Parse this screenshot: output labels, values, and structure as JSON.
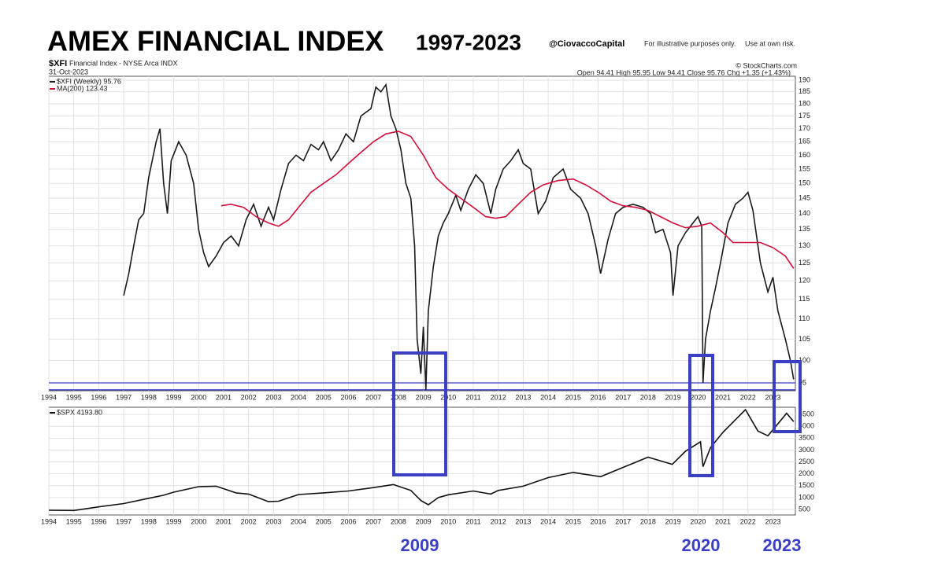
{
  "chart_data": [
    {
      "type": "line",
      "title": "AMEX FINANCIAL INDEX",
      "subtitle": "1997-2023",
      "handle": "@CiovaccoCapital",
      "notes": [
        "For illustrative purposes only.",
        "Use at own risk."
      ],
      "symbol": "$XFI",
      "symbol_desc": "Financial Index - NYSE Arca INDX",
      "source": "© StockCharts.com",
      "date": "31-Oct-2023",
      "quote": "Open 94.41 High 95.95 Low 94.41 Close 95.76 Chg +1.35 (+1.43%)",
      "log_scale": true,
      "grid": true,
      "xlim": [
        1994,
        2023.9
      ],
      "xticks": [
        1994,
        1995,
        1996,
        1997,
        1998,
        1999,
        2000,
        2001,
        2002,
        2003,
        2004,
        2005,
        2006,
        2007,
        2008,
        2009,
        2010,
        2011,
        2012,
        2013,
        2014,
        2015,
        2016,
        2017,
        2018,
        2019,
        2020,
        2021,
        2022,
        2023
      ],
      "ylim": [
        93.3,
        191.7
      ],
      "yticks": [
        95,
        100,
        105,
        110,
        115,
        120,
        125,
        130,
        135,
        140,
        145,
        150,
        155,
        160,
        165,
        170,
        175,
        180,
        185,
        190
      ],
      "hlines": [
        95,
        93.5
      ],
      "hline_color": "#3a3fc4",
      "series": [
        {
          "name": "$XFI (Weekly) 95.76",
          "color": "#1a1a1a",
          "x": [
            1997.0,
            1997.2,
            1997.4,
            1997.6,
            1997.8,
            1998.0,
            1998.3,
            1998.45,
            1998.6,
            1998.75,
            1998.9,
            1999.2,
            1999.5,
            1999.8,
            2000.0,
            2000.2,
            2000.4,
            2000.7,
            2001.0,
            2001.3,
            2001.6,
            2001.9,
            2002.2,
            2002.5,
            2002.8,
            2003.0,
            2003.3,
            2003.6,
            2003.9,
            2004.2,
            2004.5,
            2004.8,
            2005.0,
            2005.3,
            2005.6,
            2005.9,
            2006.2,
            2006.5,
            2006.9,
            2007.1,
            2007.3,
            2007.5,
            2007.7,
            2007.9,
            2008.1,
            2008.3,
            2008.5,
            2008.65,
            2008.75,
            2008.9,
            2009.0,
            2009.1,
            2009.2,
            2009.4,
            2009.6,
            2009.8,
            2010.0,
            2010.3,
            2010.5,
            2010.8,
            2011.1,
            2011.4,
            2011.7,
            2011.9,
            2012.2,
            2012.5,
            2012.8,
            2013.0,
            2013.3,
            2013.6,
            2013.9,
            2014.2,
            2014.6,
            2014.9,
            2015.3,
            2015.6,
            2015.9,
            2016.1,
            2016.4,
            2016.7,
            2017.0,
            2017.4,
            2017.8,
            2018.1,
            2018.3,
            2018.6,
            2018.9,
            2019.0,
            2019.2,
            2019.5,
            2019.8,
            2020.0,
            2020.15,
            2020.2,
            2020.3,
            2020.5,
            2020.7,
            2020.9,
            2021.2,
            2021.5,
            2021.8,
            2022.0,
            2022.2,
            2022.5,
            2022.8,
            2023.0,
            2023.2,
            2023.5,
            2023.7,
            2023.83
          ],
          "values": [
            116,
            122,
            130,
            138,
            140,
            152,
            165,
            170,
            150,
            140,
            158,
            165,
            160,
            150,
            135,
            128,
            124,
            127,
            131,
            133,
            130,
            138,
            143,
            136,
            142,
            138,
            148,
            157,
            160,
            158,
            164,
            162,
            165,
            158,
            162,
            168,
            165,
            175,
            178,
            187,
            185,
            188,
            175,
            170,
            162,
            150,
            145,
            130,
            105,
            97,
            108,
            93.5,
            112,
            124,
            133,
            137,
            140,
            146,
            141,
            148,
            153,
            150,
            140,
            148,
            155,
            158,
            162,
            157,
            155,
            140,
            144,
            152,
            155,
            148,
            145,
            140,
            130,
            122,
            132,
            140,
            142,
            143,
            142,
            140,
            134,
            135,
            128,
            116,
            130,
            134,
            137,
            139,
            136,
            95,
            105,
            112,
            118,
            125,
            137,
            143,
            145,
            147,
            141,
            125,
            117,
            121,
            112,
            105,
            100,
            95.76
          ]
        },
        {
          "name": "MA(200) 123.43",
          "color": "#d0103a",
          "x": [
            2000.9,
            2001.3,
            2001.8,
            2002.3,
            2002.8,
            2003.2,
            2003.6,
            2004.0,
            2004.5,
            2005.0,
            2005.5,
            2006.0,
            2006.5,
            2007.0,
            2007.5,
            2008.0,
            2008.5,
            2009.0,
            2009.5,
            2010.0,
            2010.5,
            2011.0,
            2011.5,
            2011.9,
            2012.3,
            2012.8,
            2013.3,
            2013.8,
            2014.4,
            2015.0,
            2015.5,
            2016.0,
            2016.5,
            2017.0,
            2017.5,
            2018.0,
            2018.5,
            2019.0,
            2019.5,
            2020.0,
            2020.5,
            2021.0,
            2021.4,
            2022.0,
            2022.5,
            2023.0,
            2023.5,
            2023.83
          ],
          "values": [
            142.5,
            143,
            142,
            139,
            137,
            136,
            138,
            142,
            147,
            150,
            153,
            157,
            161,
            165,
            168,
            169,
            167,
            160,
            152,
            148,
            145,
            142,
            139,
            138.5,
            139,
            143,
            147,
            149.5,
            151,
            151.5,
            149.5,
            147,
            144,
            142.5,
            142,
            141,
            139,
            137,
            135.5,
            136,
            137,
            134,
            131,
            131,
            131,
            129.5,
            127,
            123.43
          ]
        }
      ]
    },
    {
      "type": "line",
      "grid": true,
      "xlim": [
        1994,
        2023.9
      ],
      "xticks": [
        1994,
        1995,
        1996,
        1997,
        1998,
        1999,
        2000,
        2001,
        2002,
        2003,
        2004,
        2005,
        2006,
        2007,
        2008,
        2009,
        2010,
        2011,
        2012,
        2013,
        2014,
        2015,
        2016,
        2017,
        2018,
        2019,
        2020,
        2021,
        2022,
        2023
      ],
      "ylim": [
        270,
        4800
      ],
      "yticks": [
        500,
        1000,
        1500,
        2000,
        2500,
        3000,
        3500,
        4000,
        4500
      ],
      "series": [
        {
          "name": "$SPX 4193.80",
          "color": "#111111",
          "x": [
            1994.0,
            1995.0,
            1996.0,
            1997.0,
            1998.0,
            1998.6,
            1999.0,
            2000.0,
            2000.7,
            2001.5,
            2002.0,
            2002.8,
            2003.2,
            2004.0,
            2005.0,
            2006.0,
            2007.0,
            2007.8,
            2008.5,
            2008.9,
            2009.2,
            2009.6,
            2010.0,
            2011.0,
            2011.7,
            2012.0,
            2013.0,
            2014.0,
            2015.0,
            2016.1,
            2017.0,
            2018.0,
            2018.97,
            2019.5,
            2020.1,
            2020.2,
            2020.5,
            2021.0,
            2021.9,
            2022.4,
            2022.8,
            2023.0,
            2023.55,
            2023.83
          ],
          "values": [
            470,
            460,
            610,
            750,
            970,
            1100,
            1230,
            1460,
            1480,
            1200,
            1150,
            830,
            850,
            1130,
            1200,
            1280,
            1420,
            1550,
            1300,
            880,
            700,
            1000,
            1120,
            1280,
            1150,
            1300,
            1480,
            1840,
            2060,
            1880,
            2270,
            2700,
            2400,
            2950,
            3350,
            2300,
            3100,
            3750,
            4700,
            3800,
            3600,
            3850,
            4550,
            4193.8
          ]
        }
      ]
    }
  ],
  "annotations": [
    "2009",
    "2020",
    "2023"
  ]
}
